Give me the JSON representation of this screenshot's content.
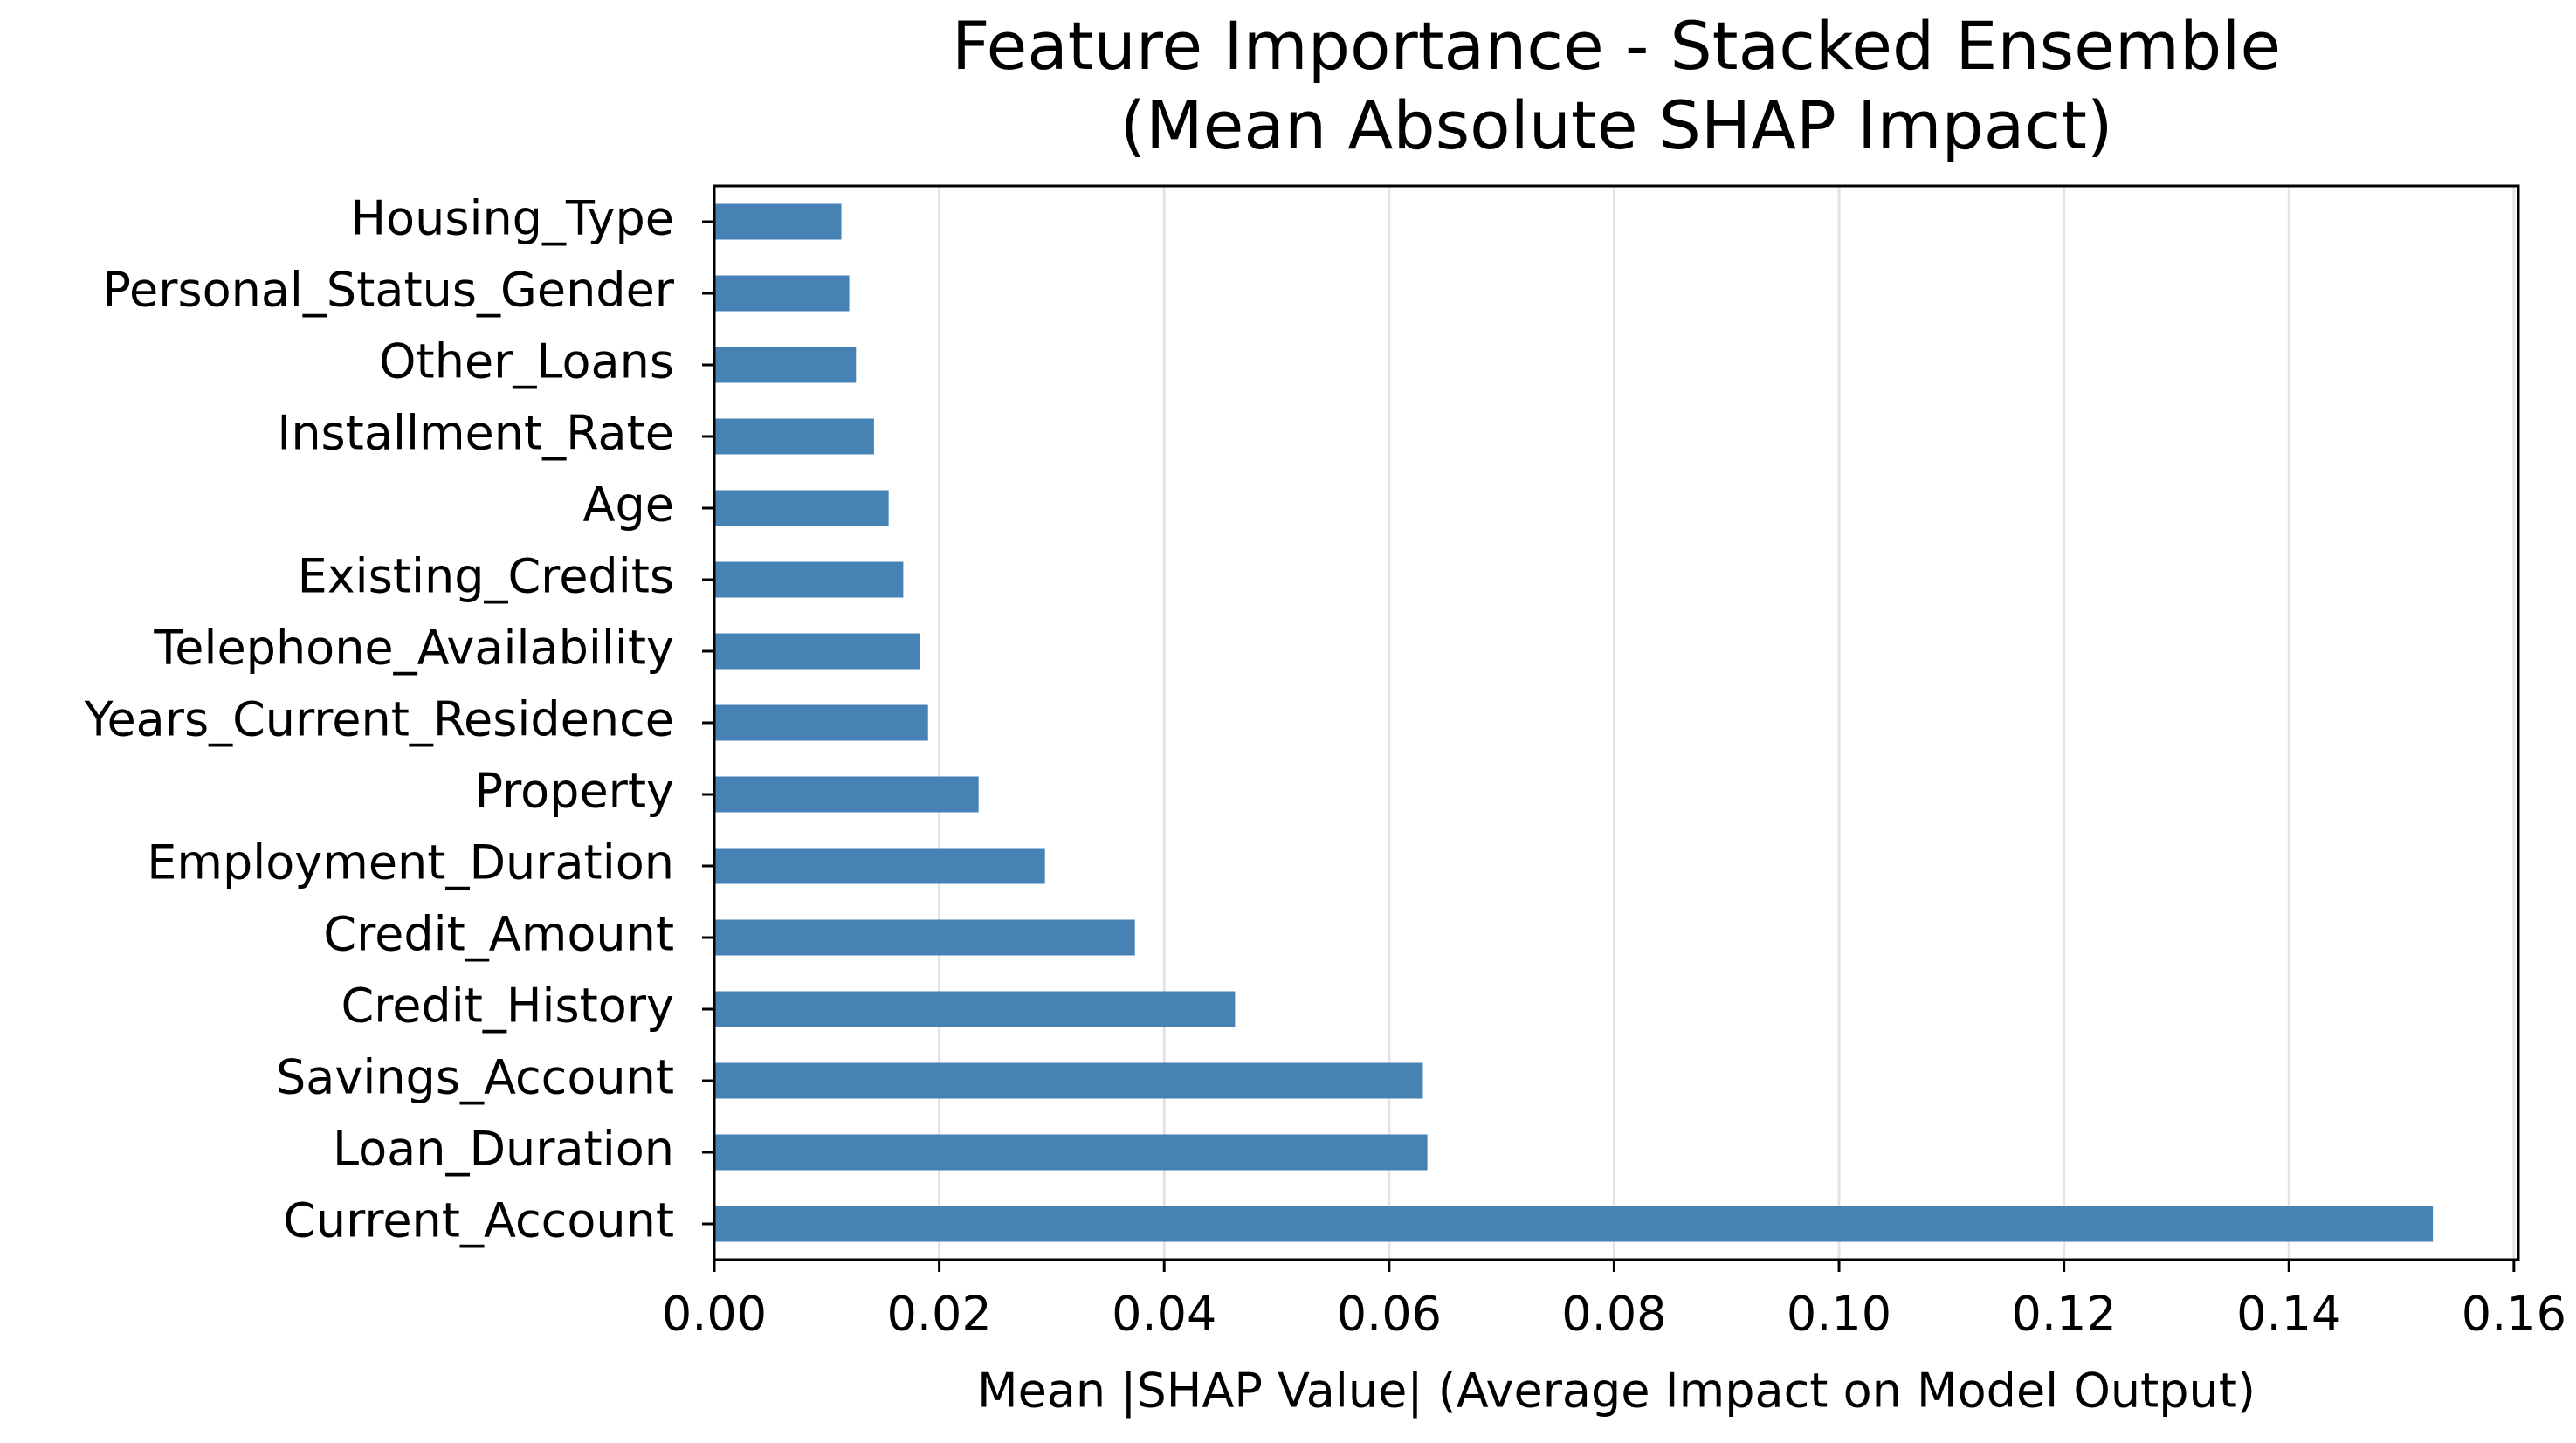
{
  "chart_data": {
    "type": "barh",
    "title": [
      "Feature Importance - Stacked Ensemble",
      "(Mean Absolute SHAP Impact)"
    ],
    "xlabel": "Mean |SHAP Value| (Average Impact on Model Output)",
    "categories": [
      "Housing_Type",
      "Personal_Status_Gender",
      "Other_Loans",
      "Installment_Rate",
      "Age",
      "Existing_Credits",
      "Telephone_Availability",
      "Years_Current_Residence",
      "Property",
      "Employment_Duration",
      "Credit_Amount",
      "Credit_History",
      "Savings_Account",
      "Loan_Duration",
      "Current_Account"
    ],
    "values": [
      0.0113,
      0.012,
      0.0126,
      0.0142,
      0.0155,
      0.0168,
      0.0183,
      0.019,
      0.0235,
      0.0294,
      0.0374,
      0.0463,
      0.063,
      0.0634,
      0.1528
    ],
    "color": "#4682b4",
    "xlim": [
      0,
      0.1604
    ],
    "xticks": [
      {
        "value": 0,
        "label": "0.00"
      },
      {
        "value": 0.02,
        "label": "0.02"
      },
      {
        "value": 0.04,
        "label": "0.04"
      },
      {
        "value": 0.06,
        "label": "0.06"
      },
      {
        "value": 0.08,
        "label": "0.08"
      },
      {
        "value": 0.1,
        "label": "0.10"
      },
      {
        "value": 0.12,
        "label": "0.12"
      },
      {
        "value": 0.14,
        "label": "0.14"
      },
      {
        "value": 0.16,
        "label": "0.16"
      }
    ],
    "grid": true
  }
}
